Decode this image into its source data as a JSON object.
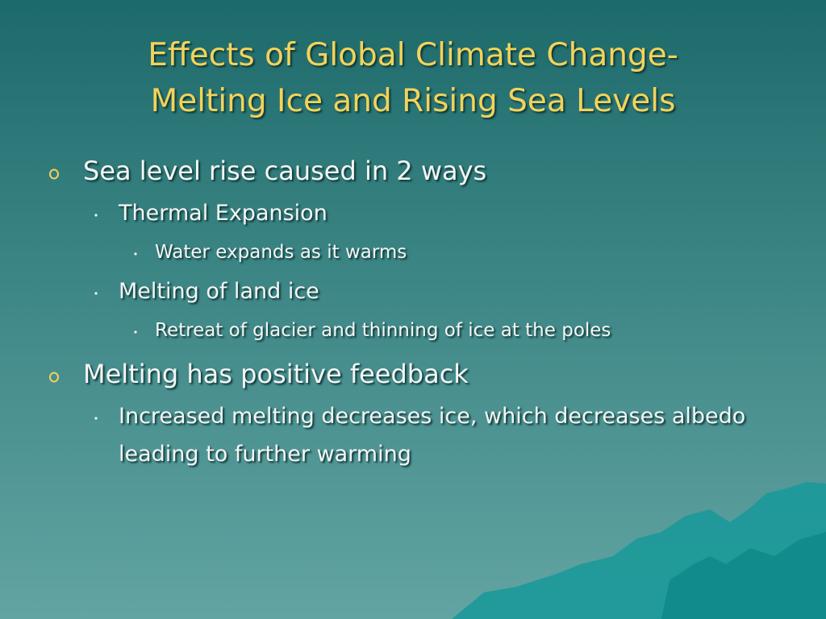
{
  "title": {
    "lines": [
      "Effects of Global Climate Change-",
      "Melting Ice and Rising Sea Levels"
    ]
  },
  "bullets": [
    {
      "text": "Sea level rise caused in 2 ways",
      "children": [
        {
          "text": "Thermal Expansion",
          "children": [
            {
              "text": "Water expands as it warms"
            }
          ]
        },
        {
          "text": "Melting of land ice",
          "children": [
            {
              "text": "Retreat of glacier and thinning of ice at the poles"
            }
          ]
        }
      ]
    },
    {
      "text": "Melting has positive feedback",
      "children": [
        {
          "text": "Increased melting decreases ice, which decreases albedo leading to further warming"
        }
      ]
    }
  ]
}
